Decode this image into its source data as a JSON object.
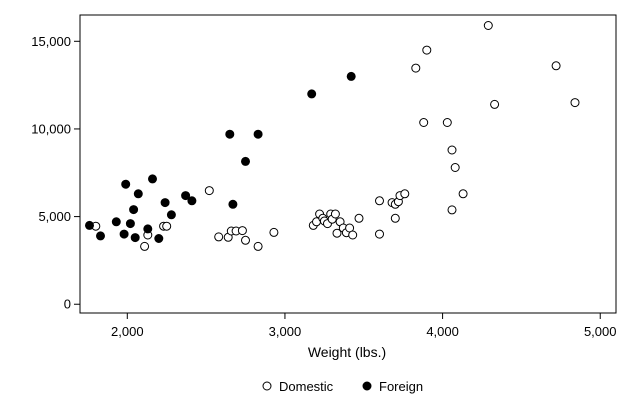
{
  "chart_data": {
    "type": "scatter",
    "xlabel": "Weight (lbs.)",
    "ylabel": "",
    "xlim": [
      1700,
      5100
    ],
    "ylim": [
      -500,
      16500
    ],
    "x_ticks": [
      {
        "value": 2000,
        "label": "2,000"
      },
      {
        "value": 3000,
        "label": "3,000"
      },
      {
        "value": 4000,
        "label": "4,000"
      },
      {
        "value": 5000,
        "label": "5,000"
      }
    ],
    "y_ticks": [
      {
        "value": 0,
        "label": "0"
      },
      {
        "value": 5000,
        "label": "5,000"
      },
      {
        "value": 10000,
        "label": "10,000"
      },
      {
        "value": 15000,
        "label": "15,000"
      }
    ],
    "grid": false,
    "legend_position": "bottom",
    "series": [
      {
        "name": "Domestic",
        "marker": "hollow-circle",
        "color": "#000000",
        "points": [
          [
            1800,
            4450
          ],
          [
            2110,
            3300
          ],
          [
            2130,
            3950
          ],
          [
            2230,
            4450
          ],
          [
            2250,
            4450
          ],
          [
            2520,
            6480
          ],
          [
            2580,
            3840
          ],
          [
            2640,
            3820
          ],
          [
            2660,
            4180
          ],
          [
            2690,
            4180
          ],
          [
            2730,
            4200
          ],
          [
            2750,
            3650
          ],
          [
            2830,
            3300
          ],
          [
            2930,
            4100
          ],
          [
            3180,
            4500
          ],
          [
            3200,
            4700
          ],
          [
            3220,
            5150
          ],
          [
            3240,
            4900
          ],
          [
            3250,
            4750
          ],
          [
            3270,
            4600
          ],
          [
            3290,
            5150
          ],
          [
            3300,
            4850
          ],
          [
            3320,
            5150
          ],
          [
            3330,
            4050
          ],
          [
            3350,
            4700
          ],
          [
            3370,
            4350
          ],
          [
            3390,
            4080
          ],
          [
            3410,
            4350
          ],
          [
            3430,
            3950
          ],
          [
            3470,
            4900
          ],
          [
            3600,
            5900
          ],
          [
            3600,
            4000
          ],
          [
            3680,
            5800
          ],
          [
            3700,
            5700
          ],
          [
            3700,
            4900
          ],
          [
            3720,
            5850
          ],
          [
            3730,
            6200
          ],
          [
            3760,
            6300
          ],
          [
            3830,
            13470
          ],
          [
            3880,
            10370
          ],
          [
            3900,
            14500
          ],
          [
            4030,
            10370
          ],
          [
            4060,
            8800
          ],
          [
            4060,
            5380
          ],
          [
            4080,
            7800
          ],
          [
            4130,
            6300
          ],
          [
            4290,
            15900
          ],
          [
            4330,
            11400
          ],
          [
            4720,
            13600
          ],
          [
            4840,
            11500
          ]
        ]
      },
      {
        "name": "Foreign",
        "marker": "filled-circle",
        "color": "#000000",
        "points": [
          [
            1760,
            4500
          ],
          [
            1830,
            3900
          ],
          [
            1930,
            4700
          ],
          [
            1980,
            4000
          ],
          [
            1990,
            6850
          ],
          [
            2020,
            4600
          ],
          [
            2040,
            5400
          ],
          [
            2050,
            3800
          ],
          [
            2070,
            6300
          ],
          [
            2130,
            4300
          ],
          [
            2160,
            7150
          ],
          [
            2200,
            3750
          ],
          [
            2240,
            5800
          ],
          [
            2280,
            5100
          ],
          [
            2370,
            6200
          ],
          [
            2410,
            5900
          ],
          [
            2650,
            9700
          ],
          [
            2670,
            5700
          ],
          [
            2750,
            8150
          ],
          [
            2830,
            9700
          ],
          [
            3170,
            12000
          ],
          [
            3420,
            13000
          ]
        ]
      }
    ]
  }
}
